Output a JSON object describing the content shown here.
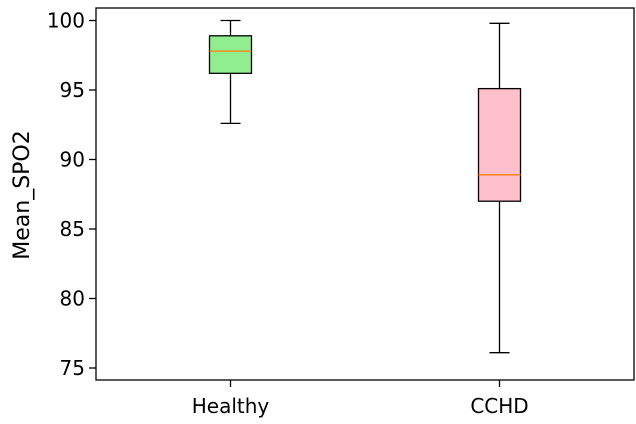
{
  "chart_data": {
    "type": "boxplot",
    "title": "",
    "xlabel": "",
    "ylabel": "Mean_SPO2",
    "ylim": [
      75,
      100.9
    ],
    "yticks": [
      75,
      80,
      85,
      90,
      95,
      100
    ],
    "grid": false,
    "categories": [
      "Healthy",
      "CCHD"
    ],
    "boxes": [
      {
        "category": "Healthy",
        "whisker_low": 92.6,
        "q1": 96.2,
        "median": 97.8,
        "q3": 98.9,
        "whisker_high": 100.0,
        "fill": "#90ee90"
      },
      {
        "category": "CCHD",
        "whisker_low": 76.1,
        "q1": 87.0,
        "median": 88.9,
        "q3": 95.1,
        "whisker_high": 99.8,
        "fill": "#ffc0cb"
      }
    ],
    "median_color": "#ff7f0e"
  }
}
